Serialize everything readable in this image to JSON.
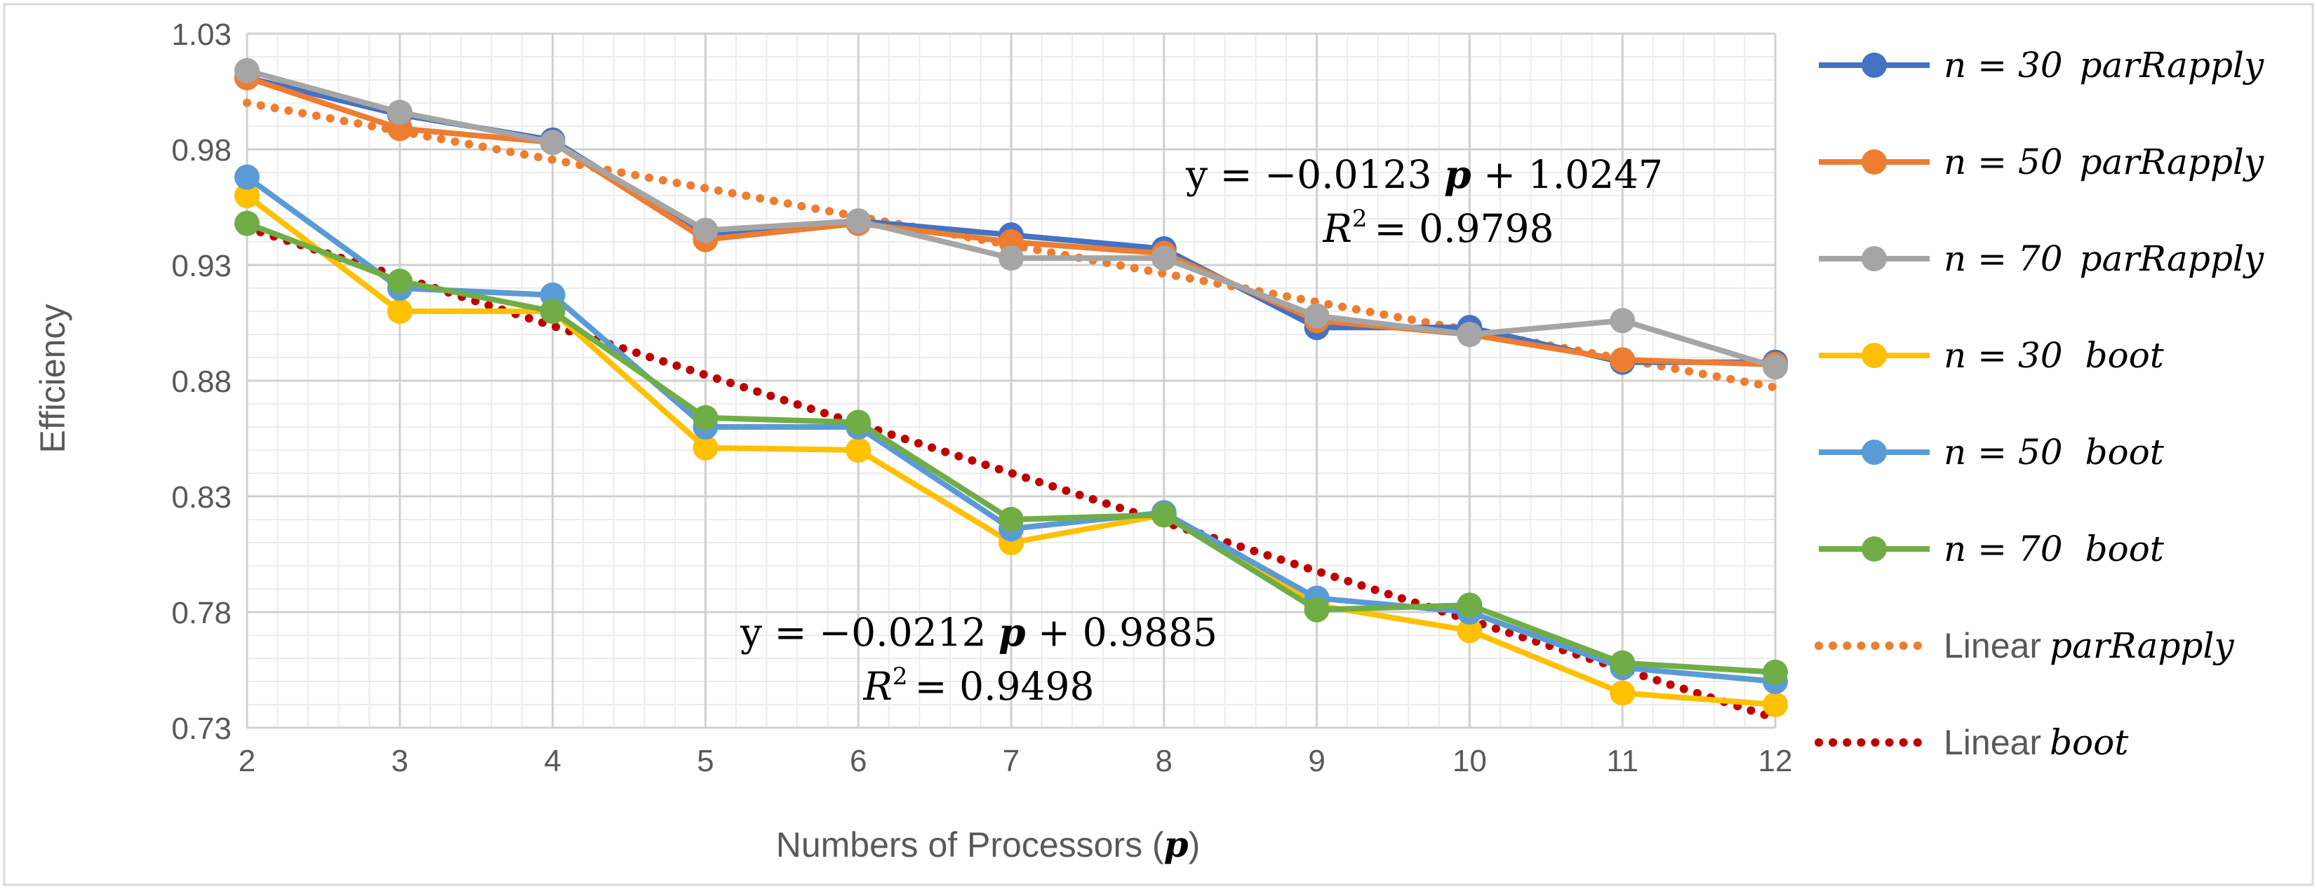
{
  "chart_data": {
    "type": "line",
    "title": "",
    "xlabel": "Numbers of Processors (",
    "xlabel_var": "p",
    "xlabel_close": ")",
    "ylabel": "Efficiency",
    "x": [
      2,
      3,
      4,
      5,
      6,
      7,
      8,
      9,
      10,
      11,
      12
    ],
    "xlim": [
      2,
      12
    ],
    "ylim": [
      0.73,
      1.03
    ],
    "yticks": [
      0.73,
      0.78,
      0.83,
      0.88,
      0.93,
      0.98,
      1.03
    ],
    "ytick_labels": [
      "0.73",
      "0.78",
      "0.83",
      "0.88",
      "0.93",
      "0.98",
      "1.03"
    ],
    "xtick_labels": [
      "2",
      "3",
      "4",
      "5",
      "6",
      "7",
      "8",
      "9",
      "10",
      "11",
      "12"
    ],
    "grid": true,
    "minor_grid": true,
    "legend_position": "right",
    "series": [
      {
        "name": "n = 30 parRapply",
        "n_label": "n = 30",
        "method": "parRapply",
        "color": "#4472C4",
        "values": [
          1.011,
          0.995,
          0.984,
          0.943,
          0.949,
          0.943,
          0.937,
          0.903,
          0.903,
          0.888,
          0.888
        ]
      },
      {
        "name": "n = 50 parRapply",
        "n_label": "n = 50",
        "method": "parRapply",
        "color": "#ED7D31",
        "values": [
          1.011,
          0.989,
          0.983,
          0.941,
          0.948,
          0.94,
          0.935,
          0.906,
          0.9,
          0.889,
          0.887
        ]
      },
      {
        "name": "n = 70 parRapply",
        "n_label": "n = 70",
        "method": "parRapply",
        "color": "#A5A5A5",
        "values": [
          1.014,
          0.996,
          0.983,
          0.945,
          0.949,
          0.933,
          0.933,
          0.908,
          0.9,
          0.906,
          0.886
        ]
      },
      {
        "name": "n = 30 boot",
        "n_label": "n = 30",
        "method": "boot",
        "color": "#FFC000",
        "values": [
          0.96,
          0.91,
          0.91,
          0.851,
          0.85,
          0.81,
          0.822,
          0.783,
          0.772,
          0.745,
          0.74
        ]
      },
      {
        "name": "n = 50 boot",
        "n_label": "n = 50",
        "method": "boot",
        "color": "#5B9BD5",
        "values": [
          0.968,
          0.92,
          0.917,
          0.86,
          0.86,
          0.816,
          0.823,
          0.786,
          0.78,
          0.756,
          0.75
        ]
      },
      {
        "name": "n = 70 boot",
        "n_label": "n = 70",
        "method": "boot",
        "color": "#70AD47",
        "values": [
          0.948,
          0.923,
          0.91,
          0.864,
          0.862,
          0.82,
          0.822,
          0.781,
          0.783,
          0.758,
          0.754
        ]
      }
    ],
    "trendlines": [
      {
        "name": "Linear parRapply",
        "prefix": "Linear",
        "method": "parRapply",
        "color": "#ED7D31",
        "slope": -0.0123,
        "intercept": 1.0247,
        "equation_lead": "y = −0.0123",
        "equation_var": "p",
        "equation_tail": "+ 1.0247",
        "r2_label": "R",
        "r2_exp": "2",
        "r2_value": "= 0.9798"
      },
      {
        "name": "Linear boot",
        "prefix": "Linear",
        "method": "boot",
        "color": "#C00000",
        "slope": -0.0212,
        "intercept": 0.9885,
        "equation_lead": "y = −0.0212",
        "equation_var": "p",
        "equation_tail": "+ 0.9885",
        "r2_label": "R",
        "r2_exp": "2",
        "r2_value": "= 0.9498"
      }
    ]
  }
}
